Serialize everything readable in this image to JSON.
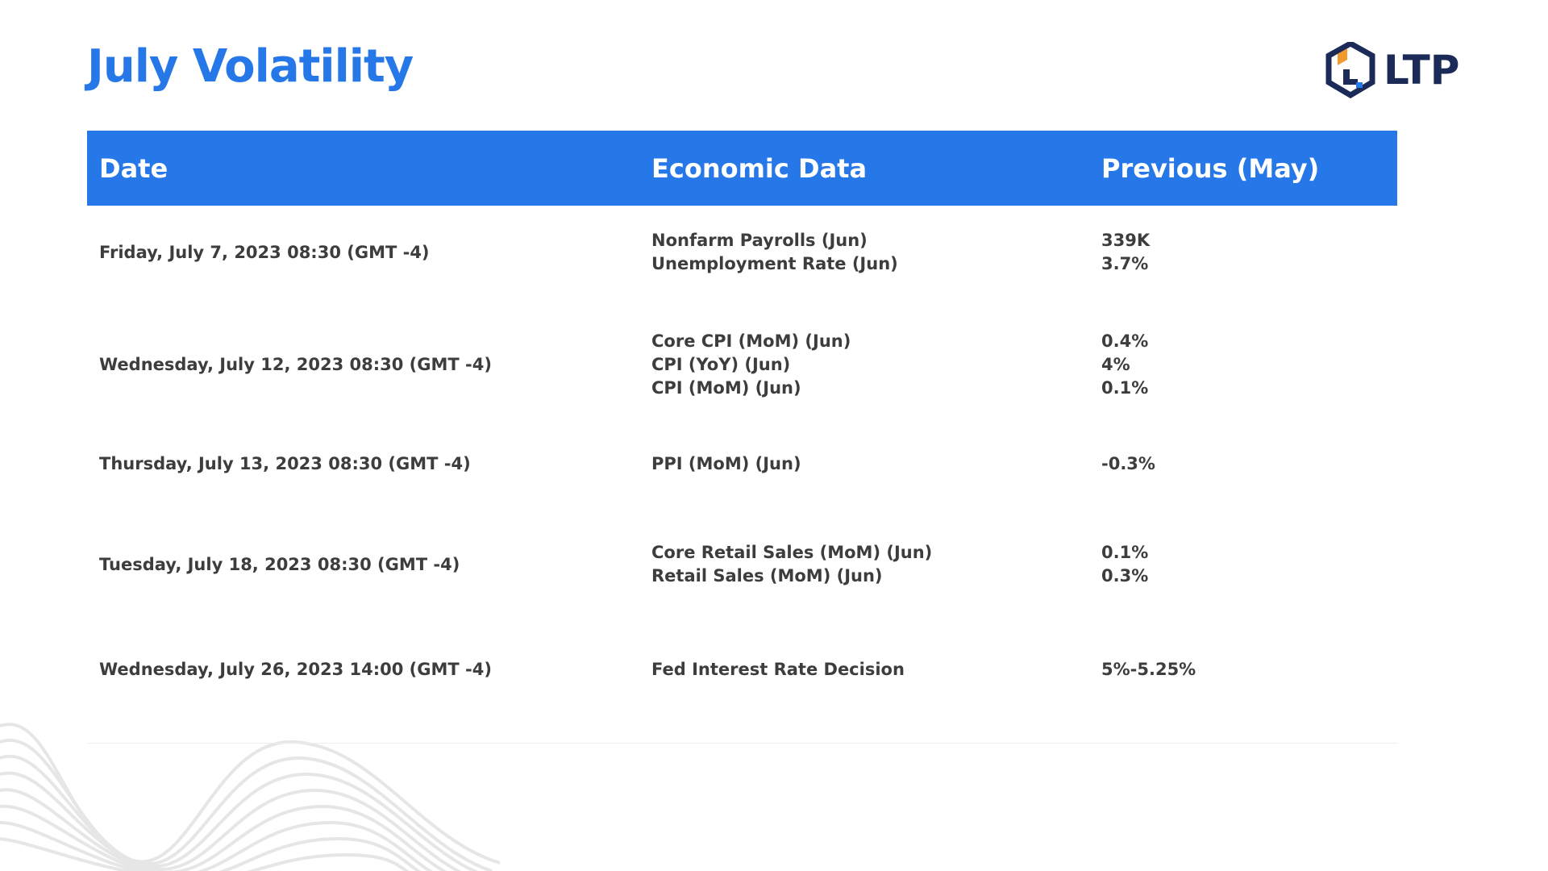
{
  "header": {
    "title": "July Volatility",
    "logo_text": "LTP",
    "logo_icon": "ltp-cube-logo-icon"
  },
  "colors": {
    "accent": "#2677e8",
    "logo_navy": "#1b2a57",
    "logo_orange": "#f29b2c",
    "text": "#3d3d3d"
  },
  "table": {
    "columns": [
      "Date",
      "Economic Data",
      "Previous (May)"
    ],
    "rows": [
      {
        "date": "Friday, July 7, 2023 08:30 (GMT -4)",
        "economic_data": [
          "Nonfarm Payrolls (Jun)",
          "Unemployment Rate (Jun)"
        ],
        "previous": [
          "339K",
          "3.7%"
        ]
      },
      {
        "date": "Wednesday, July 12, 2023 08:30 (GMT -4)",
        "economic_data": [
          "Core CPI (MoM) (Jun)",
          "CPI (YoY) (Jun)",
          "CPI (MoM) (Jun)"
        ],
        "previous": [
          "0.4%",
          "4%",
          "0.1%"
        ]
      },
      {
        "date": "Thursday, July 13, 2023 08:30 (GMT -4)",
        "economic_data": [
          "PPI (MoM) (Jun)"
        ],
        "previous": [
          "-0.3%"
        ]
      },
      {
        "date": "Tuesday, July 18, 2023 08:30 (GMT -4)",
        "economic_data": [
          "Core Retail Sales (MoM) (Jun)",
          "Retail Sales (MoM) (Jun)"
        ],
        "previous": [
          "0.1%",
          "0.3%"
        ]
      },
      {
        "date": "Wednesday, July 26, 2023 14:00 (GMT -4)",
        "economic_data": [
          "Fed Interest Rate Decision"
        ],
        "previous": [
          "5%-5.25%"
        ]
      }
    ]
  }
}
